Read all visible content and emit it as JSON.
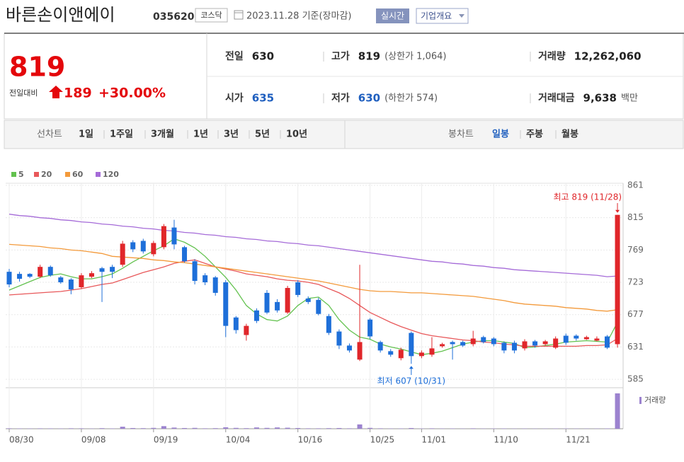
{
  "header": {
    "name": "바른손이앤에이",
    "code": "035620",
    "market": "코스닥",
    "date": "2023.11.28 기준(장마감)",
    "realtime": "실시간",
    "company": "기업개요"
  },
  "quote": {
    "price": "819",
    "change_label": "전일대비",
    "change": "189",
    "change_rate": "+30.00%",
    "items": [
      {
        "label": "전일",
        "value": "630"
      },
      {
        "label": "고가",
        "value": "819",
        "note": "(상한가 1,064)"
      },
      {
        "label": "거래량",
        "value": "12,262,060"
      },
      {
        "label": "시가",
        "value": "635",
        "color": "#1f5fbf"
      },
      {
        "label": "저가",
        "value": "630",
        "color": "#1f5fbf",
        "note": "(하한가 574)"
      },
      {
        "label": "거래대금",
        "value": "9,638",
        "note": "백만"
      }
    ]
  },
  "nav": {
    "line_label": "선차트",
    "line_periods": [
      "1일",
      "1주일",
      "3개월",
      "1년",
      "3년",
      "5년",
      "10년"
    ],
    "candle_label": "봉차트",
    "candle_periods": [
      "일봉",
      "주봉",
      "월봉"
    ]
  },
  "chart_data": {
    "type": "candlestick",
    "categories": [
      "08/30",
      null,
      null,
      null,
      null,
      null,
      null,
      "09/08",
      null,
      null,
      null,
      null,
      null,
      null,
      "09/19",
      null,
      null,
      null,
      null,
      null,
      null,
      "10/04",
      null,
      null,
      null,
      null,
      null,
      null,
      "10/16",
      null,
      null,
      null,
      null,
      null,
      null,
      "10/25",
      null,
      null,
      null,
      null,
      "11/01",
      null,
      null,
      null,
      null,
      null,
      null,
      "11/10",
      null,
      null,
      null,
      null,
      null,
      null,
      "11/21",
      null,
      null,
      null,
      null,
      null
    ],
    "open": [
      738,
      735,
      735,
      731,
      745,
      730,
      727,
      716,
      731,
      743,
      745,
      748,
      780,
      782,
      763,
      773,
      801,
      773,
      753,
      733,
      730,
      723,
      673,
      648,
      683,
      708,
      695,
      680,
      723,
      700,
      698,
      675,
      653,
      633,
      613,
      670,
      638,
      625,
      615,
      651,
      618,
      620,
      632,
      638,
      638,
      635,
      645,
      643,
      637,
      637,
      629,
      639,
      635,
      630,
      647,
      647,
      642,
      640,
      646,
      635
    ],
    "high": [
      742,
      738,
      736,
      748,
      747,
      732,
      729,
      736,
      739,
      745,
      748,
      782,
      783,
      785,
      782,
      806,
      812,
      775,
      756,
      736,
      732,
      726,
      675,
      664,
      686,
      712,
      699,
      718,
      726,
      703,
      701,
      678,
      656,
      636,
      748,
      672,
      640,
      628,
      630,
      653,
      626,
      645,
      637,
      640,
      640,
      654,
      647,
      645,
      639,
      640,
      642,
      641,
      641,
      646,
      650,
      649,
      647,
      646,
      648,
      819
    ],
    "low": [
      716,
      724,
      729,
      729,
      731,
      721,
      706,
      714,
      729,
      695,
      729,
      745,
      766,
      764,
      760,
      770,
      770,
      751,
      720,
      719,
      704,
      645,
      650,
      640,
      665,
      678,
      680,
      678,
      702,
      692,
      676,
      648,
      628,
      623,
      611,
      642,
      623,
      617,
      612,
      607,
      615,
      617,
      630,
      613,
      631,
      632,
      636,
      632,
      622,
      622,
      626,
      630,
      633,
      628,
      634,
      640,
      641,
      639,
      628,
      630
    ],
    "close": [
      720,
      728,
      731,
      745,
      733,
      723,
      713,
      733,
      736,
      738,
      738,
      778,
      770,
      767,
      779,
      803,
      777,
      753,
      725,
      723,
      708,
      661,
      655,
      661,
      668,
      680,
      683,
      715,
      705,
      695,
      678,
      651,
      633,
      626,
      638,
      646,
      626,
      620,
      627,
      618,
      623,
      629,
      635,
      635,
      633,
      643,
      638,
      635,
      626,
      626,
      639,
      633,
      639,
      643,
      637,
      643,
      645,
      643,
      630,
      819
    ],
    "up_color": "#e0262a",
    "down_color": "#1e6fd9",
    "series": [
      {
        "name": "5",
        "color": "#63c24f",
        "values": [
          712,
          718,
          724,
          730,
          733,
          735,
          731,
          728,
          728,
          731,
          735,
          743,
          752,
          760,
          768,
          775,
          785,
          780,
          772,
          760,
          745,
          730,
          712,
          690,
          678,
          670,
          668,
          675,
          690,
          700,
          702,
          690,
          670,
          655,
          645,
          642,
          635,
          631,
          628,
          624,
          620,
          622,
          625,
          630,
          635,
          638,
          640,
          640,
          638,
          636,
          630,
          631,
          633,
          635,
          638,
          639,
          640,
          639,
          638,
          666
        ]
      },
      {
        "name": "20",
        "color": "#e8585a",
        "values": [
          705,
          706,
          707,
          708,
          709,
          710,
          712,
          714,
          717,
          720,
          722,
          727,
          732,
          737,
          741,
          745,
          750,
          753,
          755,
          750,
          745,
          742,
          739,
          735,
          733,
          731,
          728,
          726,
          725,
          723,
          720,
          714,
          708,
          700,
          690,
          680,
          673,
          666,
          660,
          655,
          650,
          647,
          645,
          643,
          641,
          640,
          638,
          637,
          635,
          634,
          632,
          632,
          632,
          632,
          632,
          632,
          633,
          633,
          634,
          643
        ]
      },
      {
        "name": "60",
        "color": "#f39a3b",
        "values": [
          777,
          776,
          775,
          774,
          772,
          771,
          769,
          768,
          766,
          764,
          760,
          759,
          758,
          757,
          755,
          754,
          752,
          751,
          749,
          747,
          745,
          743,
          741,
          739,
          737,
          735,
          733,
          731,
          729,
          727,
          725,
          722,
          719,
          716,
          713,
          711,
          710,
          710,
          709,
          708,
          708,
          707,
          706,
          705,
          704,
          703,
          701,
          699,
          697,
          694,
          692,
          691,
          690,
          689,
          687,
          686,
          685,
          683,
          682,
          684
        ]
      },
      {
        "name": "120",
        "color": "#a56bd8",
        "values": [
          820,
          818,
          817,
          815,
          814,
          812,
          811,
          809,
          808,
          806,
          805,
          803,
          802,
          800,
          799,
          797,
          796,
          794,
          793,
          791,
          790,
          788,
          787,
          785,
          784,
          782,
          781,
          779,
          778,
          776,
          775,
          773,
          771,
          769,
          767,
          765,
          763,
          761,
          759,
          757,
          755,
          753,
          752,
          750,
          749,
          747,
          746,
          744,
          743,
          741,
          740,
          739,
          738,
          737,
          736,
          735,
          734,
          733,
          731,
          732
        ]
      }
    ],
    "volume": {
      "name": "거래량",
      "color": "#9c83cf",
      "values": [
        150000,
        120000,
        100000,
        140000,
        130000,
        110000,
        160000,
        150000,
        90000,
        200000,
        120000,
        700000,
        250000,
        200000,
        300000,
        900000,
        400000,
        250000,
        300000,
        150000,
        200000,
        500000,
        300000,
        200000,
        450000,
        300000,
        450000,
        350000,
        250000,
        150000,
        150000,
        200000,
        250000,
        150000,
        1500000,
        300000,
        150000,
        100000,
        120000,
        250000,
        100000,
        150000,
        100000,
        120000,
        80000,
        150000,
        90000,
        100000,
        120000,
        90000,
        100000,
        80000,
        90000,
        110000,
        100000,
        90000,
        80000,
        90000,
        120000,
        12262060
      ]
    },
    "ylim": [
      573,
      861
    ],
    "yticks": [
      861,
      815,
      769,
      723,
      677,
      631,
      585
    ],
    "grid": true,
    "high_label": "최고 819 (11/28)",
    "low_label": "최저 607 (10/31)"
  }
}
